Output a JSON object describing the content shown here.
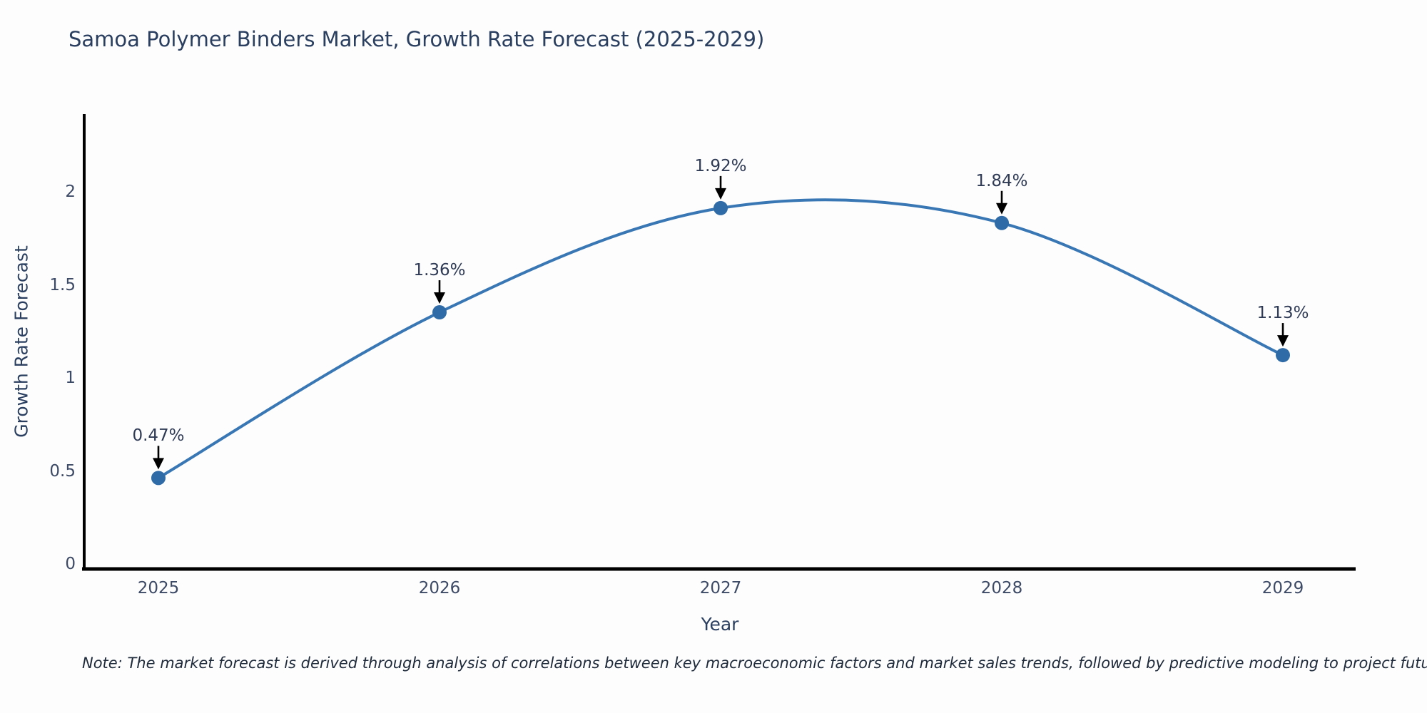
{
  "title": "Samoa Polymer Binders Market, Growth Rate Forecast (2025-2029)",
  "footnote": "Note: The market forecast is derived through analysis of correlations between key macroeconomic factors and market sales trends, followed by predictive modeling to project future sales",
  "chart_data": {
    "type": "line",
    "line_shape": "spline",
    "x": [
      "2025",
      "2026",
      "2027",
      "2028",
      "2029"
    ],
    "series": [
      {
        "name": "Growth Rate Forecast",
        "values": [
          0.47,
          1.36,
          1.92,
          1.84,
          1.13
        ]
      }
    ],
    "point_labels": [
      "0.47%",
      "1.36%",
      "1.92%",
      "1.84%",
      "1.13%"
    ],
    "xlabel": "Year",
    "ylabel": "Growth Rate Forecast",
    "ylim": [
      0,
      2.42
    ],
    "yticks": [
      "0",
      "0.5",
      "1",
      "1.5",
      "2"
    ],
    "ytick_values": [
      0,
      0.5,
      1,
      1.5,
      2
    ],
    "grid": false,
    "legend": "none",
    "colors": {
      "line": "#3877b4",
      "marker": "#2f6ba6",
      "arrow": "#000000",
      "axis": "#000000",
      "title_text": "#2a3f5f",
      "tick_text": "#3d4a66",
      "background": "#fdfdfe"
    }
  }
}
